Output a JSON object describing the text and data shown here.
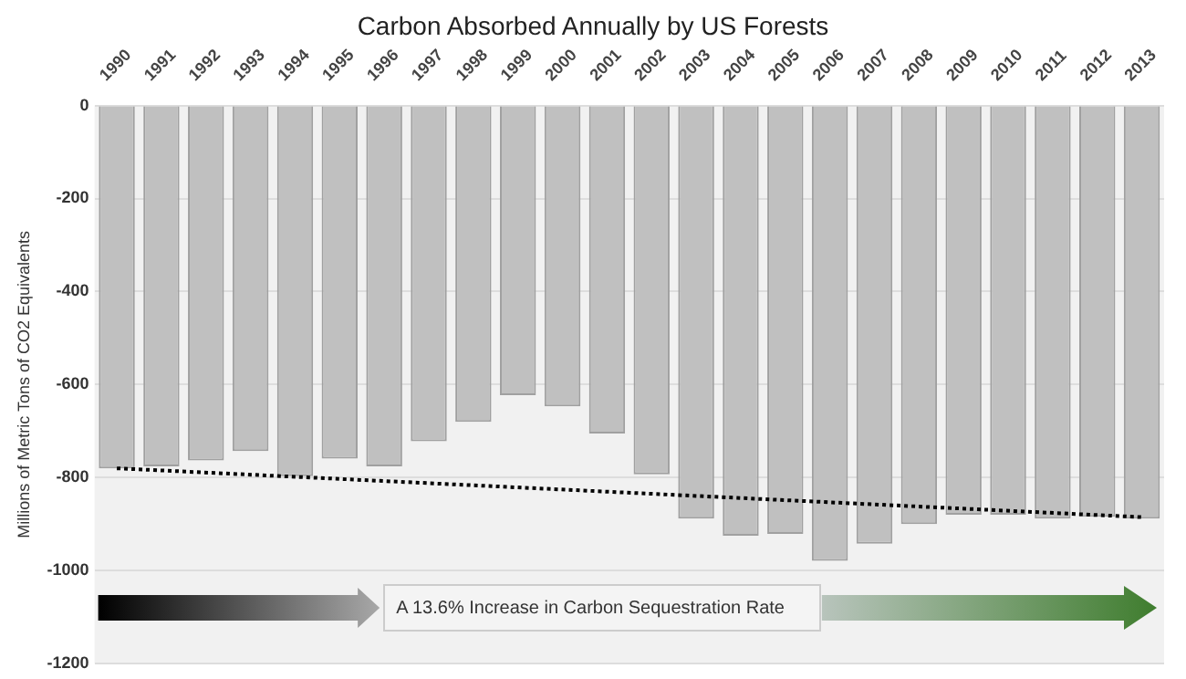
{
  "chart_data": {
    "type": "bar",
    "title": "Carbon Absorbed Annually by US Forests",
    "ylabel": "Millions of Metric Tons of CO2 Equivalents",
    "categories": [
      "1990",
      "1991",
      "1992",
      "1993",
      "1994",
      "1995",
      "1996",
      "1997",
      "1998",
      "1999",
      "2000",
      "2001",
      "2002",
      "2003",
      "2004",
      "2005",
      "2006",
      "2007",
      "2008",
      "2009",
      "2010",
      "2011",
      "2012",
      "2013"
    ],
    "series": [
      {
        "color": "#c0c0c0",
        "values": [
          -780,
          -776,
          -763,
          -743,
          -797,
          -759,
          -776,
          -722,
          -680,
          -623,
          -647,
          -705,
          -793,
          -888,
          -925,
          -921,
          -979,
          -942,
          -900,
          -880,
          -880,
          -888,
          -884,
          -888
        ]
      },
      {
        "type": "line",
        "color": "#000000",
        "line_style": "dotted",
        "marker": "none",
        "values": [
          -780,
          null,
          null,
          null,
          null,
          null,
          null,
          null,
          null,
          null,
          null,
          null,
          null,
          null,
          null,
          null,
          null,
          null,
          null,
          null,
          null,
          null,
          null,
          -885
        ]
      }
    ],
    "ylim": [
      -1200,
      0
    ],
    "yticks": [
      -1200,
      -1000,
      -800,
      -600,
      -400,
      -200,
      0
    ],
    "grid": "y",
    "legend": false,
    "annotations": [
      "A 13.6% Increase in Carbon Sequestration Rate"
    ]
  }
}
